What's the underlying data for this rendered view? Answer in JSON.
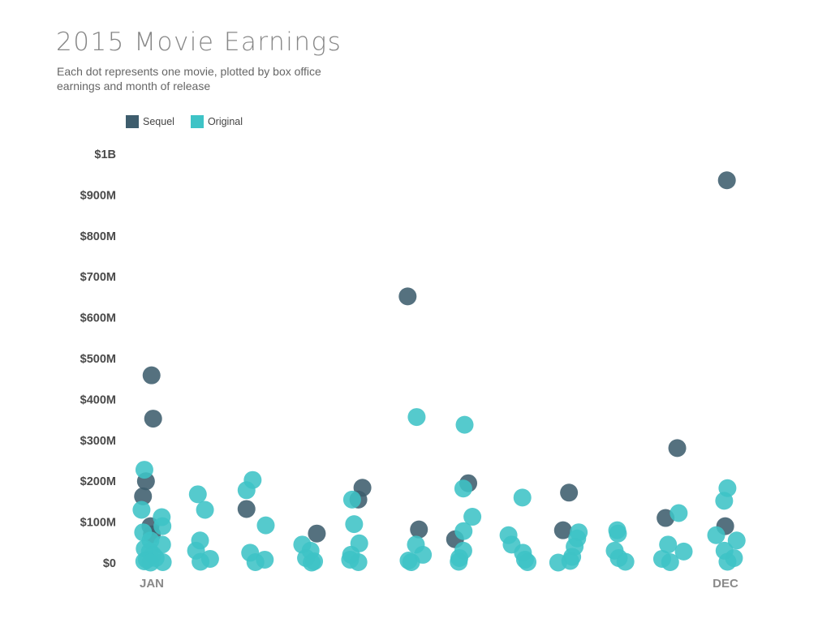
{
  "title": "2015 Movie Earnings",
  "subtitle": "Each dot represents one movie, plotted by box office earnings and month of release",
  "legend": {
    "sequel": "Sequel",
    "original": "Original"
  },
  "colors": {
    "sequel": "#3e5d6d",
    "original": "#3ec3c6"
  },
  "chart_data": {
    "type": "scatter",
    "title": "2015 Movie Earnings",
    "ylim": [
      0,
      1000
    ],
    "y_unit": "$M",
    "y_ticks": [
      "$0",
      "$100M",
      "$200M",
      "$300M",
      "$400M",
      "$500M",
      "$600M",
      "$700M",
      "$800M",
      "$900M",
      "$1B"
    ],
    "x_ticks": [
      {
        "month": 1,
        "label": "JAN"
      },
      {
        "month": 12,
        "label": "DEC"
      }
    ],
    "legend_position": "top-left",
    "grid": false,
    "series": [
      {
        "name": "Sequel",
        "points": [
          {
            "month": 1,
            "value": 459
          },
          {
            "month": 1,
            "value": 353
          },
          {
            "month": 1,
            "value": 163
          },
          {
            "month": 1,
            "value": 200
          },
          {
            "month": 1,
            "value": 90
          },
          {
            "month": 1,
            "value": 70
          },
          {
            "month": 3,
            "value": 132
          },
          {
            "month": 4,
            "value": 72
          },
          {
            "month": 5,
            "value": 184
          },
          {
            "month": 5,
            "value": 155
          },
          {
            "month": 6,
            "value": 652
          },
          {
            "month": 6,
            "value": 82
          },
          {
            "month": 7,
            "value": 195
          },
          {
            "month": 7,
            "value": 58
          },
          {
            "month": 9,
            "value": 172
          },
          {
            "month": 9,
            "value": 80
          },
          {
            "month": 11,
            "value": 281
          },
          {
            "month": 11,
            "value": 110
          },
          {
            "month": 12,
            "value": 936
          },
          {
            "month": 12,
            "value": 90
          }
        ]
      },
      {
        "name": "Original",
        "points": [
          {
            "month": 1,
            "value": 228
          },
          {
            "month": 1,
            "value": 130
          },
          {
            "month": 1,
            "value": 112
          },
          {
            "month": 1,
            "value": 90
          },
          {
            "month": 1,
            "value": 75
          },
          {
            "month": 1,
            "value": 55
          },
          {
            "month": 1,
            "value": 45
          },
          {
            "month": 1,
            "value": 35
          },
          {
            "month": 1,
            "value": 28
          },
          {
            "month": 1,
            "value": 20
          },
          {
            "month": 1,
            "value": 12
          },
          {
            "month": 1,
            "value": 8
          },
          {
            "month": 1,
            "value": 4
          },
          {
            "month": 1,
            "value": 2
          },
          {
            "month": 1,
            "value": 1
          },
          {
            "month": 2,
            "value": 168
          },
          {
            "month": 2,
            "value": 130
          },
          {
            "month": 2,
            "value": 55
          },
          {
            "month": 2,
            "value": 30
          },
          {
            "month": 2,
            "value": 10
          },
          {
            "month": 2,
            "value": 3
          },
          {
            "month": 3,
            "value": 203
          },
          {
            "month": 3,
            "value": 178
          },
          {
            "month": 3,
            "value": 92
          },
          {
            "month": 3,
            "value": 25
          },
          {
            "month": 3,
            "value": 8
          },
          {
            "month": 3,
            "value": 2
          },
          {
            "month": 4,
            "value": 45
          },
          {
            "month": 4,
            "value": 30
          },
          {
            "month": 4,
            "value": 12
          },
          {
            "month": 4,
            "value": 4
          },
          {
            "month": 4,
            "value": 1
          },
          {
            "month": 5,
            "value": 155
          },
          {
            "month": 5,
            "value": 95
          },
          {
            "month": 5,
            "value": 48
          },
          {
            "month": 5,
            "value": 20
          },
          {
            "month": 5,
            "value": 8
          },
          {
            "month": 5,
            "value": 2
          },
          {
            "month": 6,
            "value": 357
          },
          {
            "month": 6,
            "value": 45
          },
          {
            "month": 6,
            "value": 20
          },
          {
            "month": 6,
            "value": 6
          },
          {
            "month": 6,
            "value": 2
          },
          {
            "month": 7,
            "value": 338
          },
          {
            "month": 7,
            "value": 182
          },
          {
            "month": 7,
            "value": 113
          },
          {
            "month": 7,
            "value": 78
          },
          {
            "month": 7,
            "value": 30
          },
          {
            "month": 7,
            "value": 12
          },
          {
            "month": 7,
            "value": 3
          },
          {
            "month": 8,
            "value": 160
          },
          {
            "month": 8,
            "value": 68
          },
          {
            "month": 8,
            "value": 45
          },
          {
            "month": 8,
            "value": 25
          },
          {
            "month": 8,
            "value": 8
          },
          {
            "month": 8,
            "value": 2
          },
          {
            "month": 9,
            "value": 75
          },
          {
            "month": 9,
            "value": 60
          },
          {
            "month": 9,
            "value": 40
          },
          {
            "month": 9,
            "value": 15
          },
          {
            "month": 9,
            "value": 5
          },
          {
            "month": 9,
            "value": 1
          },
          {
            "month": 10,
            "value": 80
          },
          {
            "month": 10,
            "value": 72
          },
          {
            "month": 10,
            "value": 30
          },
          {
            "month": 10,
            "value": 12
          },
          {
            "month": 10,
            "value": 3
          },
          {
            "month": 11,
            "value": 122
          },
          {
            "month": 11,
            "value": 45
          },
          {
            "month": 11,
            "value": 28
          },
          {
            "month": 11,
            "value": 10
          },
          {
            "month": 11,
            "value": 2
          },
          {
            "month": 12,
            "value": 183
          },
          {
            "month": 12,
            "value": 152
          },
          {
            "month": 12,
            "value": 68
          },
          {
            "month": 12,
            "value": 55
          },
          {
            "month": 12,
            "value": 30
          },
          {
            "month": 12,
            "value": 12
          },
          {
            "month": 12,
            "value": 3
          }
        ]
      }
    ]
  }
}
